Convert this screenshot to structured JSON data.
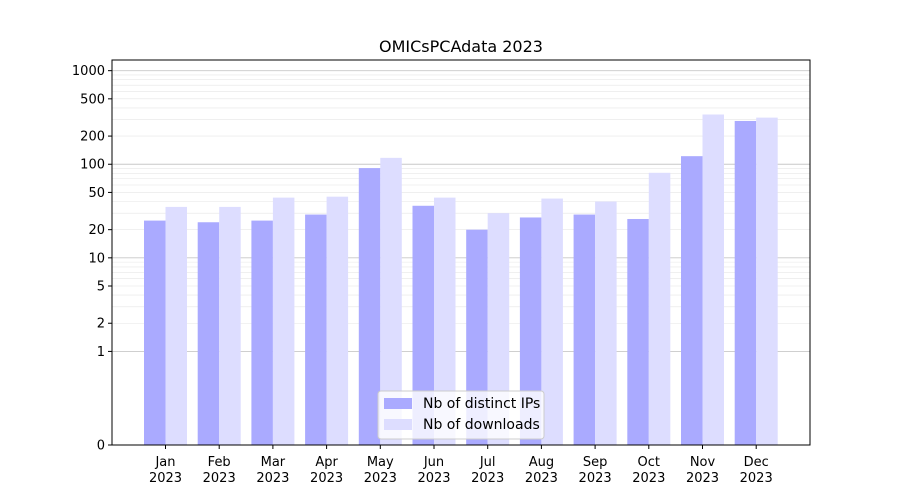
{
  "chart_data": {
    "type": "bar",
    "title": "OMICsPCAdata 2023",
    "xlabel": "",
    "ylabel": "",
    "yscale": "symlog",
    "ylim": [
      0,
      1300
    ],
    "grid": true,
    "legend_position": "bottom-center",
    "categories": [
      [
        "Jan",
        "2023"
      ],
      [
        "Feb",
        "2023"
      ],
      [
        "Mar",
        "2023"
      ],
      [
        "Apr",
        "2023"
      ],
      [
        "May",
        "2023"
      ],
      [
        "Jun",
        "2023"
      ],
      [
        "Jul",
        "2023"
      ],
      [
        "Aug",
        "2023"
      ],
      [
        "Sep",
        "2023"
      ],
      [
        "Oct",
        "2023"
      ],
      [
        "Nov",
        "2023"
      ],
      [
        "Dec",
        "2023"
      ]
    ],
    "y_ticks": [
      0,
      1,
      2,
      5,
      10,
      20,
      50,
      100,
      200,
      500,
      1000
    ],
    "series": [
      {
        "name": "Nb of distinct IPs",
        "color": "#aaaaff",
        "values": [
          25,
          24,
          25,
          29,
          91,
          36,
          20,
          27,
          29,
          26,
          122,
          290
        ]
      },
      {
        "name": "Nb of downloads",
        "color": "#ddddff",
        "values": [
          35,
          35,
          44,
          45,
          117,
          44,
          30,
          43,
          40,
          81,
          340,
          315
        ]
      }
    ]
  }
}
